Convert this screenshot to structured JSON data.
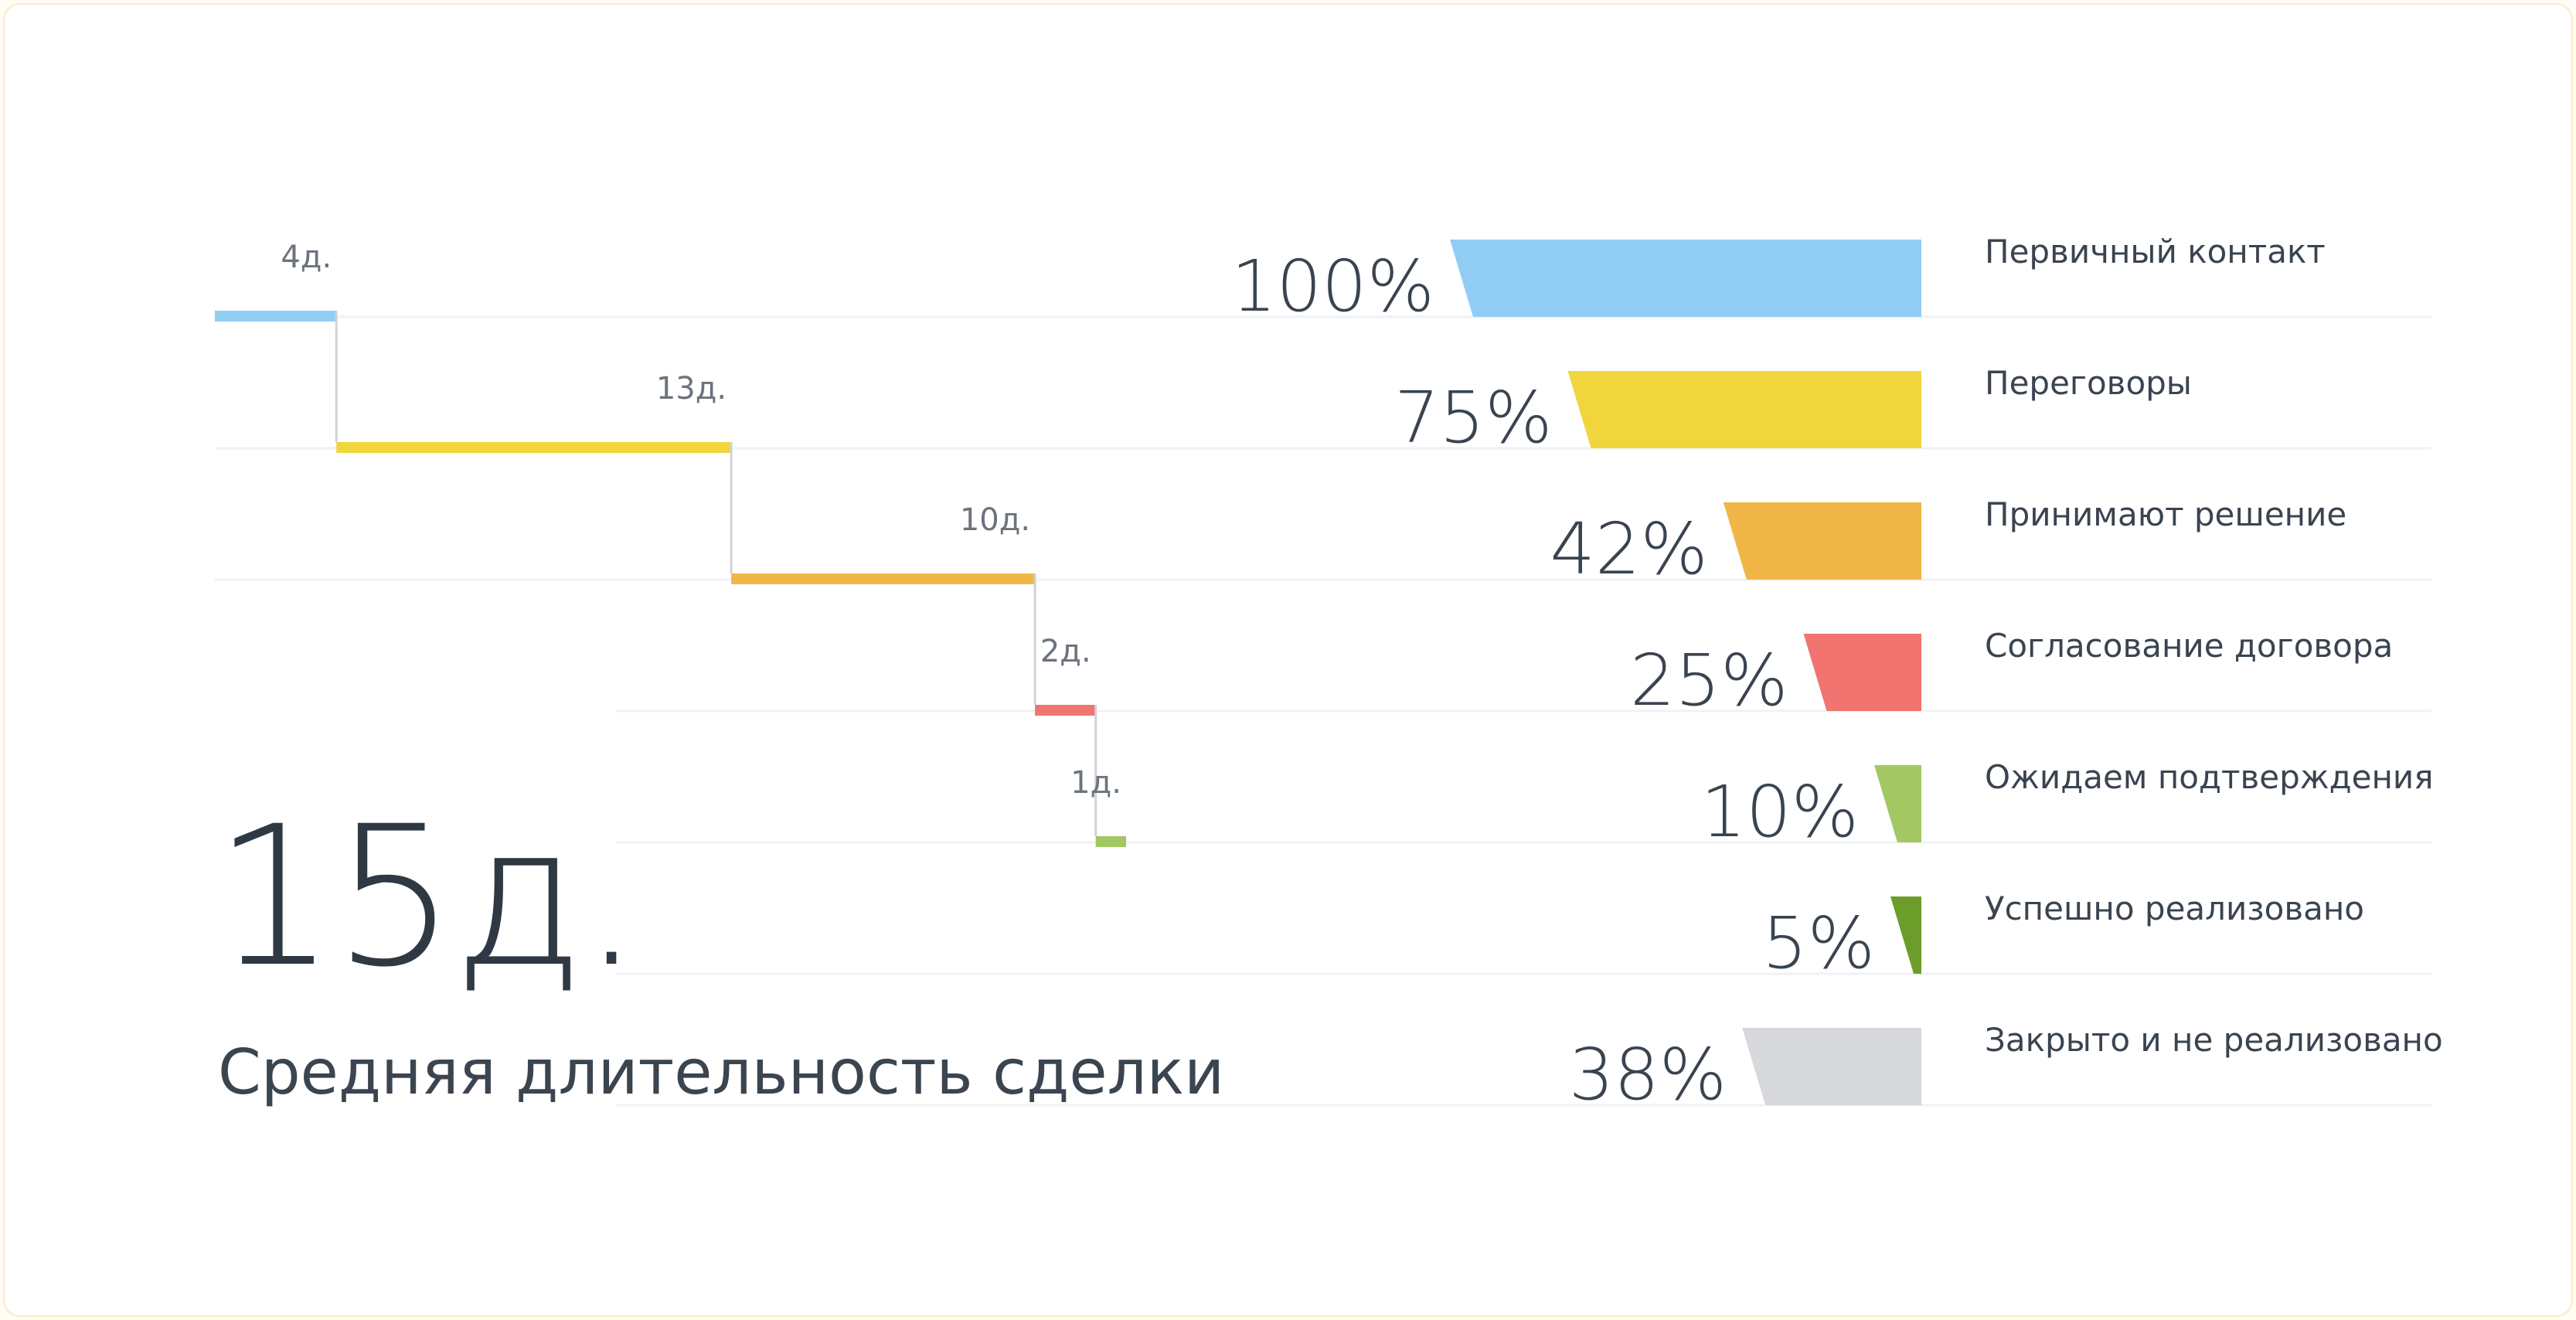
{
  "summary": {
    "value": "15д.",
    "caption": "Средняя длительность сделки"
  },
  "chart_data": {
    "type": "bar",
    "stages": [
      {
        "name": "Первичный контакт",
        "percent": 100,
        "percent_label": "100%",
        "days": 4,
        "days_label": "4д.",
        "color": "#92cdf6"
      },
      {
        "name": "Переговоры",
        "percent": 75,
        "percent_label": "75%",
        "days": 13,
        "days_label": "13д.",
        "color": "#f0d53d"
      },
      {
        "name": "Принимают решение",
        "percent": 42,
        "percent_label": "42%",
        "days": 10,
        "days_label": "10д.",
        "color": "#f0b748"
      },
      {
        "name": "Согласование договора",
        "percent": 25,
        "percent_label": "25%",
        "days": 2,
        "days_label": "2д.",
        "color": "#f17470"
      },
      {
        "name": "Ожидаем подтверждения",
        "percent": 10,
        "percent_label": "10%",
        "days": 1,
        "days_label": "1д.",
        "color": "#a2c763"
      },
      {
        "name": "Успешно реализовано",
        "percent": 5,
        "percent_label": "5%",
        "color": "#6c9d2a"
      },
      {
        "name": "Закрыто и не реализовано",
        "percent": 38,
        "percent_label": "38%",
        "color": "#d6d8dc"
      }
    ]
  }
}
